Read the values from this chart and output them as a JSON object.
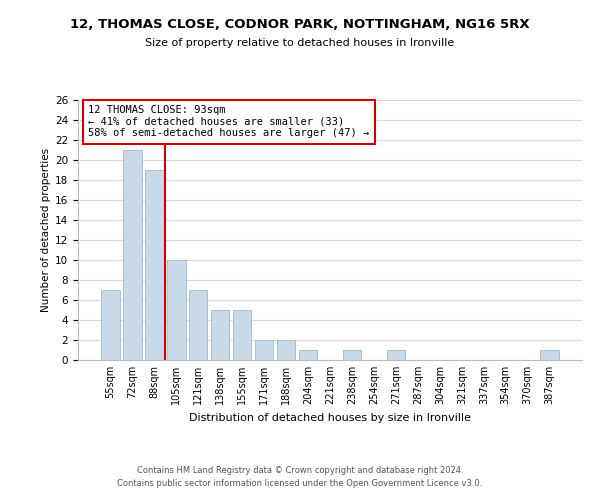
{
  "title": "12, THOMAS CLOSE, CODNOR PARK, NOTTINGHAM, NG16 5RX",
  "subtitle": "Size of property relative to detached houses in Ironville",
  "xlabel": "Distribution of detached houses by size in Ironville",
  "ylabel": "Number of detached properties",
  "bin_labels": [
    "55sqm",
    "72sqm",
    "88sqm",
    "105sqm",
    "121sqm",
    "138sqm",
    "155sqm",
    "171sqm",
    "188sqm",
    "204sqm",
    "221sqm",
    "238sqm",
    "254sqm",
    "271sqm",
    "287sqm",
    "304sqm",
    "321sqm",
    "337sqm",
    "354sqm",
    "370sqm",
    "387sqm"
  ],
  "bar_values": [
    7,
    21,
    19,
    10,
    7,
    5,
    5,
    2,
    2,
    1,
    0,
    1,
    0,
    1,
    0,
    0,
    0,
    0,
    0,
    0,
    1
  ],
  "bar_color": "#c8d9e8",
  "bar_edge_color": "#a0b8cc",
  "vline_x_index": 2,
  "vline_color": "#cc0000",
  "annotation_line1": "12 THOMAS CLOSE: 93sqm",
  "annotation_line2": "← 41% of detached houses are smaller (33)",
  "annotation_line3": "58% of semi-detached houses are larger (47) →",
  "annotation_box_color": "#ffffff",
  "annotation_box_edge": "#cc0000",
  "ylim": [
    0,
    26
  ],
  "yticks": [
    0,
    2,
    4,
    6,
    8,
    10,
    12,
    14,
    16,
    18,
    20,
    22,
    24,
    26
  ],
  "footer_line1": "Contains HM Land Registry data © Crown copyright and database right 2024.",
  "footer_line2": "Contains public sector information licensed under the Open Government Licence v3.0.",
  "bg_color": "#ffffff",
  "grid_color": "#d0dce8"
}
